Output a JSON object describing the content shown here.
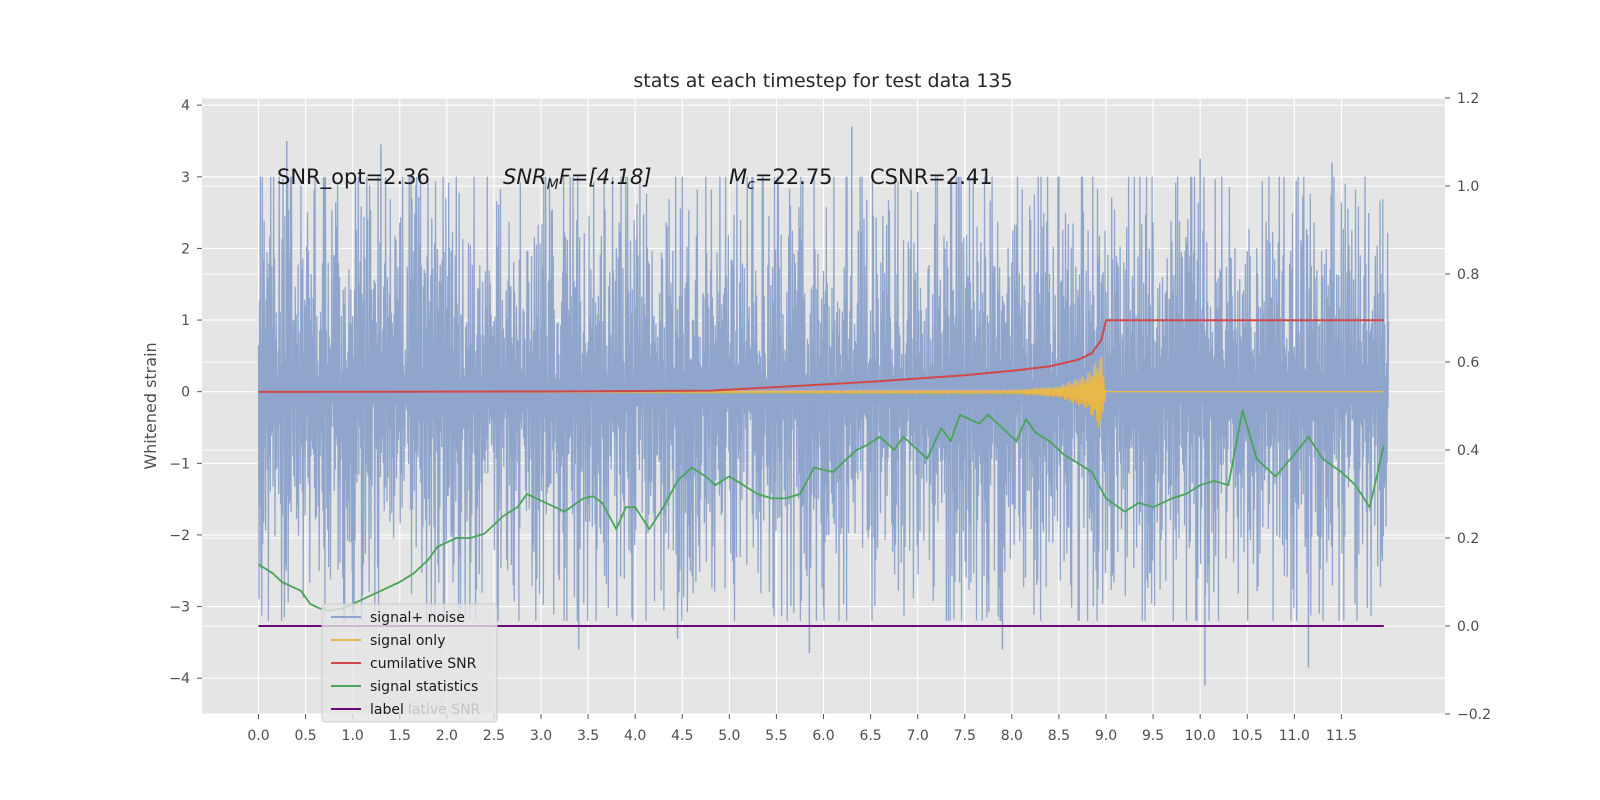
{
  "chart_data": {
    "type": "line",
    "title": "stats at each timestep for test data 135",
    "xlabel": "",
    "ylabel": "Whitened strain",
    "y2label": "",
    "xlim": [
      -0.6,
      12.6
    ],
    "ylim": [
      -4.5,
      4.1
    ],
    "y2lim": [
      -0.2,
      1.2
    ],
    "x_ticks": [
      "0.0",
      "0.5",
      "1.0",
      "1.5",
      "2.0",
      "2.5",
      "3.0",
      "3.5",
      "4.0",
      "4.5",
      "5.0",
      "5.5",
      "6.0",
      "6.5",
      "7.0",
      "7.5",
      "8.0",
      "8.5",
      "9.0",
      "9.5",
      "10.0",
      "10.5",
      "11.0",
      "11.5"
    ],
    "y_ticks": [
      "4",
      "3",
      "2",
      "1",
      "0",
      "−1",
      "−2",
      "−3",
      "−4"
    ],
    "y2_ticks": [
      "1.2",
      "1.0",
      "0.8",
      "0.6",
      "0.4",
      "0.2",
      "0.0",
      "−0.2"
    ],
    "grid": true,
    "legend_position": "lower-left",
    "annotations": {
      "snr_opt": "SNR_opt=2.36",
      "snr_mf_main": "SNR",
      "snr_mf_sub": "M",
      "snr_mf_rest": "F=[4.18]",
      "mc_main": "M",
      "mc_sub": "c",
      "mc_rest": "=22.75",
      "csnr": "CSNR=2.41"
    },
    "colors": {
      "signal_noise": "#8fa5cc",
      "signal_only": "#e8b84a",
      "cumulative_snr": "#d0484a",
      "signal_statistics": "#4aa55a",
      "label": "#6a0a7a",
      "background": "#e5e5e5",
      "grid": "#ffffff"
    },
    "series": [
      {
        "name": "signal+ noise",
        "axis": "left",
        "style": "noise",
        "x_range": [
          0,
          12
        ],
        "envelope_upper": 2.2,
        "envelope_lower": -2.3,
        "peaks": [
          [
            0.3,
            3.5
          ],
          [
            1.3,
            3.45
          ],
          [
            1.0,
            -3.1
          ],
          [
            3.4,
            -3.6
          ],
          [
            4.45,
            -3.45
          ],
          [
            5.85,
            -3.65
          ],
          [
            6.3,
            3.7
          ],
          [
            7.9,
            -3.6
          ],
          [
            10.05,
            -4.1
          ],
          [
            11.15,
            -3.85
          ],
          [
            11.4,
            3.2
          ],
          [
            10.0,
            3.25
          ],
          [
            6.0,
            -3.0
          ],
          [
            8.5,
            3.0
          ]
        ]
      },
      {
        "name": "signal only",
        "axis": "left",
        "x": [
          0.0,
          8.0,
          8.5,
          8.8,
          8.95,
          9.0
        ],
        "amplitude": [
          0.0,
          0.02,
          0.08,
          0.25,
          0.55,
          0.0
        ]
      },
      {
        "name": "cumilative SNR",
        "axis": "right",
        "x": [
          0.0,
          3.0,
          4.8,
          5.5,
          6.5,
          7.5,
          8.0,
          8.4,
          8.7,
          8.85,
          8.95,
          9.0,
          11.95
        ],
        "values": [
          0.532,
          0.533,
          0.535,
          0.543,
          0.555,
          0.57,
          0.58,
          0.59,
          0.605,
          0.62,
          0.65,
          0.695,
          0.695
        ]
      },
      {
        "name": "signal statistics",
        "axis": "right",
        "x": [
          0.0,
          0.15,
          0.25,
          0.35,
          0.45,
          0.55,
          0.65,
          0.75,
          0.9,
          1.1,
          1.3,
          1.5,
          1.65,
          1.8,
          1.9,
          2.0,
          2.1,
          2.25,
          2.4,
          2.6,
          2.75,
          2.85,
          2.95,
          3.05,
          3.25,
          3.45,
          3.55,
          3.65,
          3.8,
          3.9,
          4.0,
          4.15,
          4.3,
          4.45,
          4.6,
          4.75,
          4.85,
          5.0,
          5.15,
          5.3,
          5.45,
          5.6,
          5.75,
          5.9,
          6.1,
          6.25,
          6.35,
          6.45,
          6.6,
          6.75,
          6.85,
          6.95,
          7.1,
          7.25,
          7.35,
          7.45,
          7.55,
          7.65,
          7.75,
          7.9,
          8.05,
          8.15,
          8.25,
          8.4,
          8.55,
          8.7,
          8.85,
          9.0,
          9.2,
          9.35,
          9.5,
          9.7,
          9.85,
          10.0,
          10.15,
          10.3,
          10.45,
          10.6,
          10.8,
          11.0,
          11.15,
          11.3,
          11.5,
          11.65,
          11.8,
          11.95
        ],
        "values": [
          0.14,
          0.12,
          0.1,
          0.09,
          0.08,
          0.05,
          0.04,
          0.035,
          0.04,
          0.06,
          0.08,
          0.1,
          0.12,
          0.15,
          0.18,
          0.19,
          0.2,
          0.2,
          0.21,
          0.25,
          0.27,
          0.3,
          0.29,
          0.28,
          0.26,
          0.29,
          0.295,
          0.28,
          0.22,
          0.27,
          0.27,
          0.22,
          0.27,
          0.33,
          0.36,
          0.34,
          0.32,
          0.34,
          0.32,
          0.3,
          0.29,
          0.29,
          0.3,
          0.36,
          0.35,
          0.38,
          0.4,
          0.41,
          0.43,
          0.4,
          0.43,
          0.41,
          0.38,
          0.45,
          0.42,
          0.48,
          0.47,
          0.46,
          0.48,
          0.45,
          0.42,
          0.47,
          0.44,
          0.42,
          0.39,
          0.37,
          0.35,
          0.29,
          0.26,
          0.28,
          0.27,
          0.29,
          0.3,
          0.32,
          0.33,
          0.32,
          0.49,
          0.38,
          0.34,
          0.39,
          0.43,
          0.38,
          0.35,
          0.32,
          0.27,
          0.41
        ]
      },
      {
        "name": "label",
        "axis": "right",
        "x": [
          0.0,
          11.95
        ],
        "values": [
          0.0,
          0.0
        ]
      }
    ],
    "legend_ghost_text": "lative SNR"
  }
}
